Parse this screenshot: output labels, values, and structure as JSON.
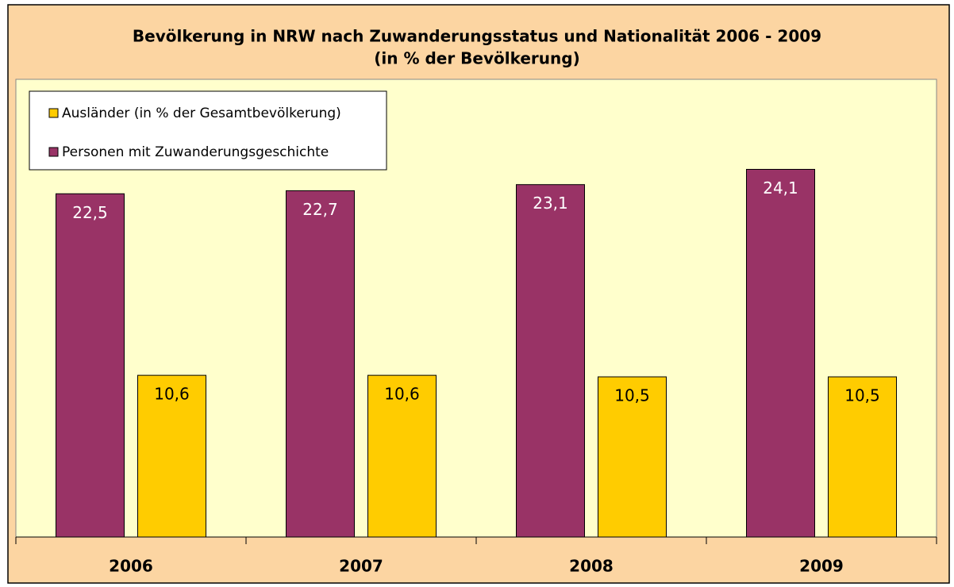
{
  "chart_data": {
    "type": "bar",
    "title": "Bevölkerung in NRW nach Zuwanderungsstatus und Nationalität 2006 - 2009",
    "subtitle": "(in % der Bevölkerung)",
    "categories": [
      "2006",
      "2007",
      "2008",
      "2009"
    ],
    "series": [
      {
        "name": "Ausländer (in % der Gesamtbevölkerung)",
        "color": "#ffcc00",
        "values": [
          10.6,
          10.6,
          10.5,
          10.5
        ],
        "value_labels": [
          "10,6",
          "10,6",
          "10,5",
          "10,5"
        ]
      },
      {
        "name": "Personen mit Zuwanderungsgeschichte",
        "color": "#993366",
        "values": [
          22.5,
          22.7,
          23.1,
          24.1
        ],
        "value_labels": [
          "22,5",
          "22,7",
          "23,1",
          "24,1"
        ]
      }
    ],
    "ylim": [
      0,
      30
    ]
  }
}
